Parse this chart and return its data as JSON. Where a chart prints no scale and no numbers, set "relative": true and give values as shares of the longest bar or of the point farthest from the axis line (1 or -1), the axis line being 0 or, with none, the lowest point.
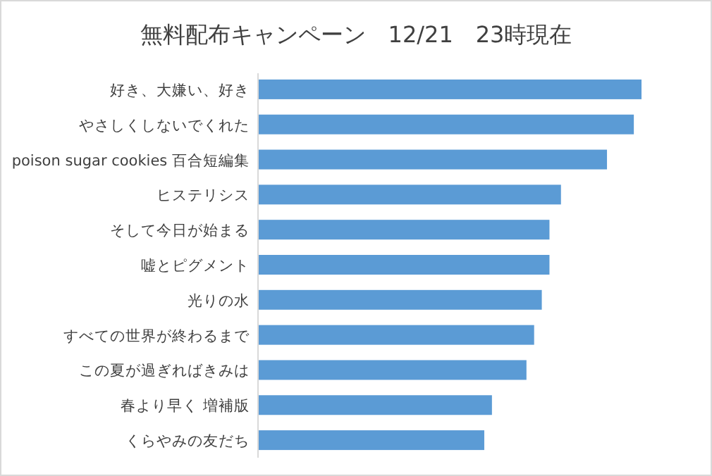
{
  "chart_data": {
    "type": "bar",
    "orientation": "horizontal",
    "relative": true,
    "title": "無料配布キャンペーン　12/21　23時現在",
    "categories": [
      "好き、大嫌い、好き",
      "やさしくしないでくれた",
      "poison sugar cookies 百合短編集",
      "ヒステリシス",
      "そして今日が始まる",
      "嘘とピグメント",
      "光りの水",
      "すべての世界が終わるまで",
      "この夏が過ぎればきみは",
      "春より早く 増補版",
      "くらやみの友だち"
    ],
    "values": [
      1,
      0.98,
      0.91,
      0.79,
      0.76,
      0.76,
      0.74,
      0.72,
      0.7,
      0.61,
      0.59
    ],
    "color": "#5b9bd5"
  }
}
